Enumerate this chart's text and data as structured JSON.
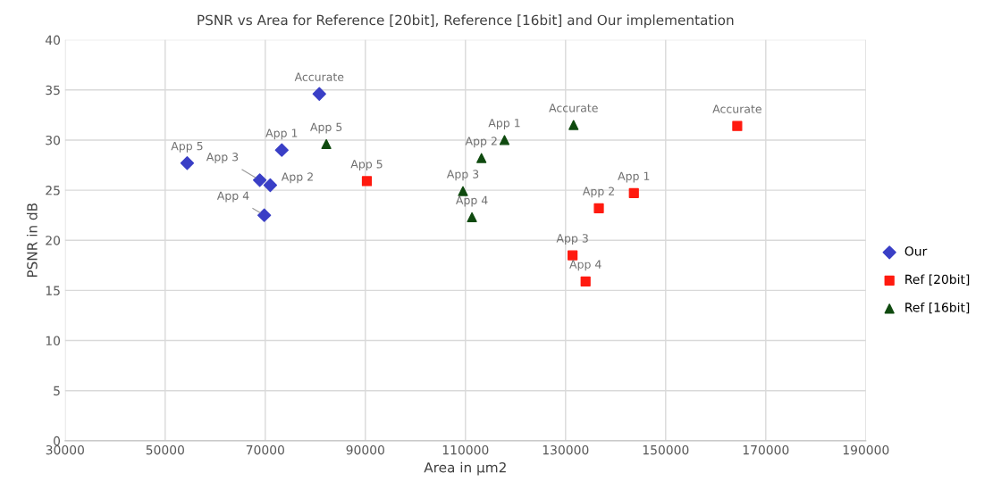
{
  "chart_data": {
    "type": "scatter",
    "title": "PSNR vs Area for Reference [20bit], Reference [16bit] and Our implementation",
    "xlabel": "Area in µm2",
    "ylabel": "PSNR in dB",
    "xlim": [
      30000,
      190000
    ],
    "xticks": [
      30000,
      50000,
      70000,
      90000,
      110000,
      130000,
      150000,
      170000,
      190000
    ],
    "ylim": [
      0,
      40
    ],
    "yticks": [
      0,
      5,
      10,
      15,
      20,
      25,
      30,
      35,
      40
    ],
    "grid": true,
    "legend": "right",
    "series": [
      {
        "name": "Our",
        "color": "#3a3fc6",
        "marker": "diamond",
        "x": [
          54400,
          68900,
          71000,
          73300,
          69800,
          80800
        ],
        "values": [
          27.7,
          26.0,
          25.5,
          29.0,
          22.5,
          34.6
        ]
      },
      {
        "name": "Ref [20bit]",
        "color": "#ff1a0f",
        "marker": "square",
        "x": [
          90300,
          164300,
          143650,
          136650,
          131400,
          134000
        ],
        "values": [
          25.9,
          31.4,
          24.7,
          23.2,
          18.5,
          15.9
        ]
      },
      {
        "name": "Ref [16bit]",
        "color": "#0f4a0f",
        "marker": "triangle",
        "x": [
          82200,
          117800,
          113200,
          109500,
          111300,
          131600
        ],
        "values": [
          29.6,
          30.0,
          28.2,
          24.9,
          22.3,
          31.5
        ]
      }
    ],
    "annotations": [
      {
        "text": "App 5",
        "x": 54400,
        "y": 27.7
      },
      {
        "text": "App 3",
        "x": 68900,
        "y": 26.0
      },
      {
        "text": "App 2",
        "x": 71000,
        "y": 25.5
      },
      {
        "text": "App 1",
        "x": 73300,
        "y": 29.0
      },
      {
        "text": "App 4",
        "x": 69800,
        "y": 22.5
      },
      {
        "text": "Accurate",
        "x": 80800,
        "y": 34.6
      },
      {
        "text": "App 5",
        "x": 90300,
        "y": 25.9
      },
      {
        "text": "Accurate",
        "x": 164300,
        "y": 31.4
      },
      {
        "text": "App 1",
        "x": 143650,
        "y": 24.7
      },
      {
        "text": "App 2",
        "x": 136650,
        "y": 23.2
      },
      {
        "text": "App 3",
        "x": 131400,
        "y": 18.5
      },
      {
        "text": "App 4",
        "x": 134000,
        "y": 15.9
      },
      {
        "text": "App 5",
        "x": 82200,
        "y": 29.6
      },
      {
        "text": "App 1",
        "x": 117800,
        "y": 30.0
      },
      {
        "text": "App 2",
        "x": 113200,
        "y": 28.2
      },
      {
        "text": "App 3",
        "x": 109500,
        "y": 24.9
      },
      {
        "text": "App 4",
        "x": 111300,
        "y": 22.3
      },
      {
        "text": "Accurate",
        "x": 131600,
        "y": 31.5
      }
    ]
  }
}
